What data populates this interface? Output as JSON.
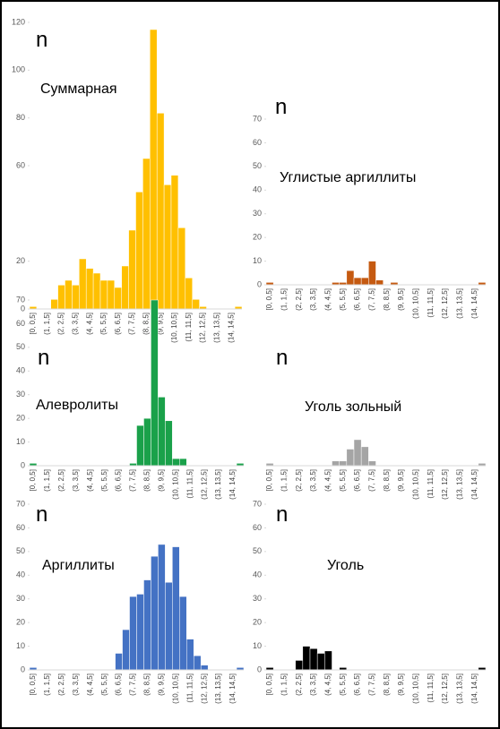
{
  "chart_data": [
    {
      "type": "bar",
      "title": "Суммарная",
      "y_label": "n",
      "color": "#ffc000",
      "categories": [
        "[0, 0,5]",
        null,
        "(1, 1,5]",
        null,
        "(2, 2,5]",
        null,
        "(3, 3,5]",
        null,
        "(4, 4,5]",
        null,
        "(5, 5,5]",
        null,
        "(6, 6,5]",
        null,
        "(7, 7,5]",
        null,
        "(8, 8,5]",
        null,
        "(9, 9,5]",
        null,
        "(10, 10,5]",
        null,
        "(11, 11,5]",
        null,
        "(12, 12,5]",
        null,
        "(13, 13,5]",
        null,
        "(14, 14,5]",
        null
      ],
      "values": [
        1,
        0,
        0,
        4,
        10,
        12,
        10,
        21,
        17,
        15,
        12,
        12,
        9,
        18,
        33,
        49,
        63,
        117,
        82,
        52,
        56,
        34,
        13,
        4,
        1,
        0,
        0,
        0,
        0,
        1
      ],
      "ylim": [
        0,
        120
      ],
      "yticks": [
        0,
        20,
        60,
        80,
        100,
        120
      ]
    },
    {
      "type": "bar",
      "title": "Углистые аргиллиты",
      "y_label": "n",
      "color": "#c55a11",
      "categories": [
        "[0, 0,5]",
        null,
        "(1, 1,5]",
        null,
        "(2, 2,5]",
        null,
        "(3, 3,5]",
        null,
        "(4, 4,5]",
        null,
        "(5, 5,5]",
        null,
        "(6, 6,5]",
        null,
        "(7, 7,5]",
        null,
        "(8, 8,5]",
        null,
        "(9, 9,5]",
        null,
        "(10, 10,5]",
        null,
        "(11, 11,5]",
        null,
        "(12, 12,5]",
        null,
        "(13, 13,5]",
        null,
        "(14, 14,5]",
        null
      ],
      "values": [
        1,
        0,
        0,
        0,
        0,
        0,
        0,
        0,
        0,
        1,
        1,
        6,
        3,
        3,
        10,
        2,
        0,
        1,
        0,
        0,
        0,
        0,
        0,
        0,
        0,
        0,
        0,
        0,
        0,
        1
      ],
      "ylim": [
        0,
        70
      ],
      "yticks": [
        0,
        10,
        20,
        30,
        40,
        50,
        60,
        70
      ]
    },
    {
      "type": "bar",
      "title": "Алевролиты",
      "y_label": "n",
      "color": "#1aa14a",
      "categories": [
        "[0, 0,5]",
        null,
        "(1, 1,5]",
        null,
        "(2, 2,5]",
        null,
        "(3, 3,5]",
        null,
        "(4, 4,5]",
        null,
        "(5, 5,5]",
        null,
        "(6, 6,5]",
        null,
        "(7, 7,5]",
        null,
        "(8, 8,5]",
        null,
        "(9, 9,5]",
        null,
        "(10, 10,5]",
        null,
        "(11, 11,5]",
        null,
        "(12, 12,5]",
        null,
        "(13, 13,5]",
        null,
        "(14, 14,5]",
        null
      ],
      "values": [
        1,
        0,
        0,
        0,
        0,
        0,
        0,
        0,
        0,
        0,
        0,
        0,
        0,
        0,
        1,
        17,
        20,
        70,
        29,
        19,
        3,
        3,
        0,
        0,
        0,
        0,
        0,
        0,
        0,
        1
      ],
      "ylim": [
        0,
        70
      ],
      "yticks": [
        0,
        10,
        20,
        30,
        40,
        50,
        60,
        70
      ]
    },
    {
      "type": "bar",
      "title": "Уголь зольный",
      "y_label": "n",
      "color": "#a5a5a5",
      "categories": [
        "[0, 0,5]",
        null,
        "(1, 1,5]",
        null,
        "(2, 2,5]",
        null,
        "(3, 3,5]",
        null,
        "(4, 4,5]",
        null,
        "(5, 5,5]",
        null,
        "(6, 6,5]",
        null,
        "(7, 7,5]",
        null,
        "(8, 8,5]",
        null,
        "(9, 9,5]",
        null,
        "(10, 10,5]",
        null,
        "(11, 11,5]",
        null,
        "(12, 12,5]",
        null,
        "(13, 13,5]",
        null,
        "(14, 14,5]",
        null
      ],
      "values": [
        1,
        0,
        0,
        0,
        0,
        0,
        0,
        0,
        0,
        2,
        2,
        7,
        11,
        8,
        2,
        0,
        0,
        0,
        0,
        0,
        0,
        0,
        0,
        0,
        0,
        0,
        0,
        0,
        0,
        1
      ],
      "ylim": [
        0,
        70
      ]
    },
    {
      "type": "bar",
      "title": "Аргиллиты",
      "y_label": "n",
      "color": "#4472c4",
      "categories": [
        "[0, 0,5]",
        null,
        "(1, 1,5]",
        null,
        "(2, 2,5]",
        null,
        "(3, 3,5]",
        null,
        "(4, 4,5]",
        null,
        "(5, 5,5]",
        null,
        "(6, 6,5]",
        null,
        "(7, 7,5]",
        null,
        "(8, 8,5]",
        null,
        "(9, 9,5]",
        null,
        "(10, 10,5]",
        null,
        "(11, 11,5]",
        null,
        "(12, 12,5]",
        null,
        "(13, 13,5]",
        null,
        "(14, 14,5]",
        null
      ],
      "values": [
        1,
        0,
        0,
        0,
        0,
        0,
        0,
        0,
        0,
        0,
        0,
        0,
        7,
        17,
        31,
        32,
        38,
        48,
        53,
        37,
        52,
        31,
        13,
        6,
        2,
        0,
        0,
        0,
        0,
        1
      ],
      "ylim": [
        0,
        70
      ],
      "yticks": [
        0,
        10,
        20,
        30,
        40,
        50,
        60,
        70
      ]
    },
    {
      "type": "bar",
      "title": "Уголь",
      "y_label": "n",
      "color": "#000000",
      "categories": [
        "[0, 0,5]",
        null,
        "(1, 1,5]",
        null,
        "(2, 2,5]",
        null,
        "(3, 3,5]",
        null,
        "(4, 4,5]",
        null,
        "(5, 5,5]",
        null,
        "(6, 6,5]",
        null,
        "(7, 7,5]",
        null,
        "(8, 8,5]",
        null,
        "(9, 9,5]",
        null,
        "(10, 10,5]",
        null,
        "(11, 11,5]",
        null,
        "(12, 12,5]",
        null,
        "(13, 13,5]",
        null,
        "(14, 14,5]",
        null
      ],
      "values": [
        1,
        0,
        0,
        0,
        4,
        10,
        9,
        7,
        8,
        0,
        1,
        0,
        0,
        0,
        0,
        0,
        0,
        0,
        0,
        0,
        0,
        0,
        0,
        0,
        0,
        0,
        0,
        0,
        0,
        1
      ],
      "ylim": [
        0,
        70
      ],
      "yticks": [
        0,
        10,
        20,
        30,
        40,
        50,
        60,
        70
      ]
    }
  ]
}
